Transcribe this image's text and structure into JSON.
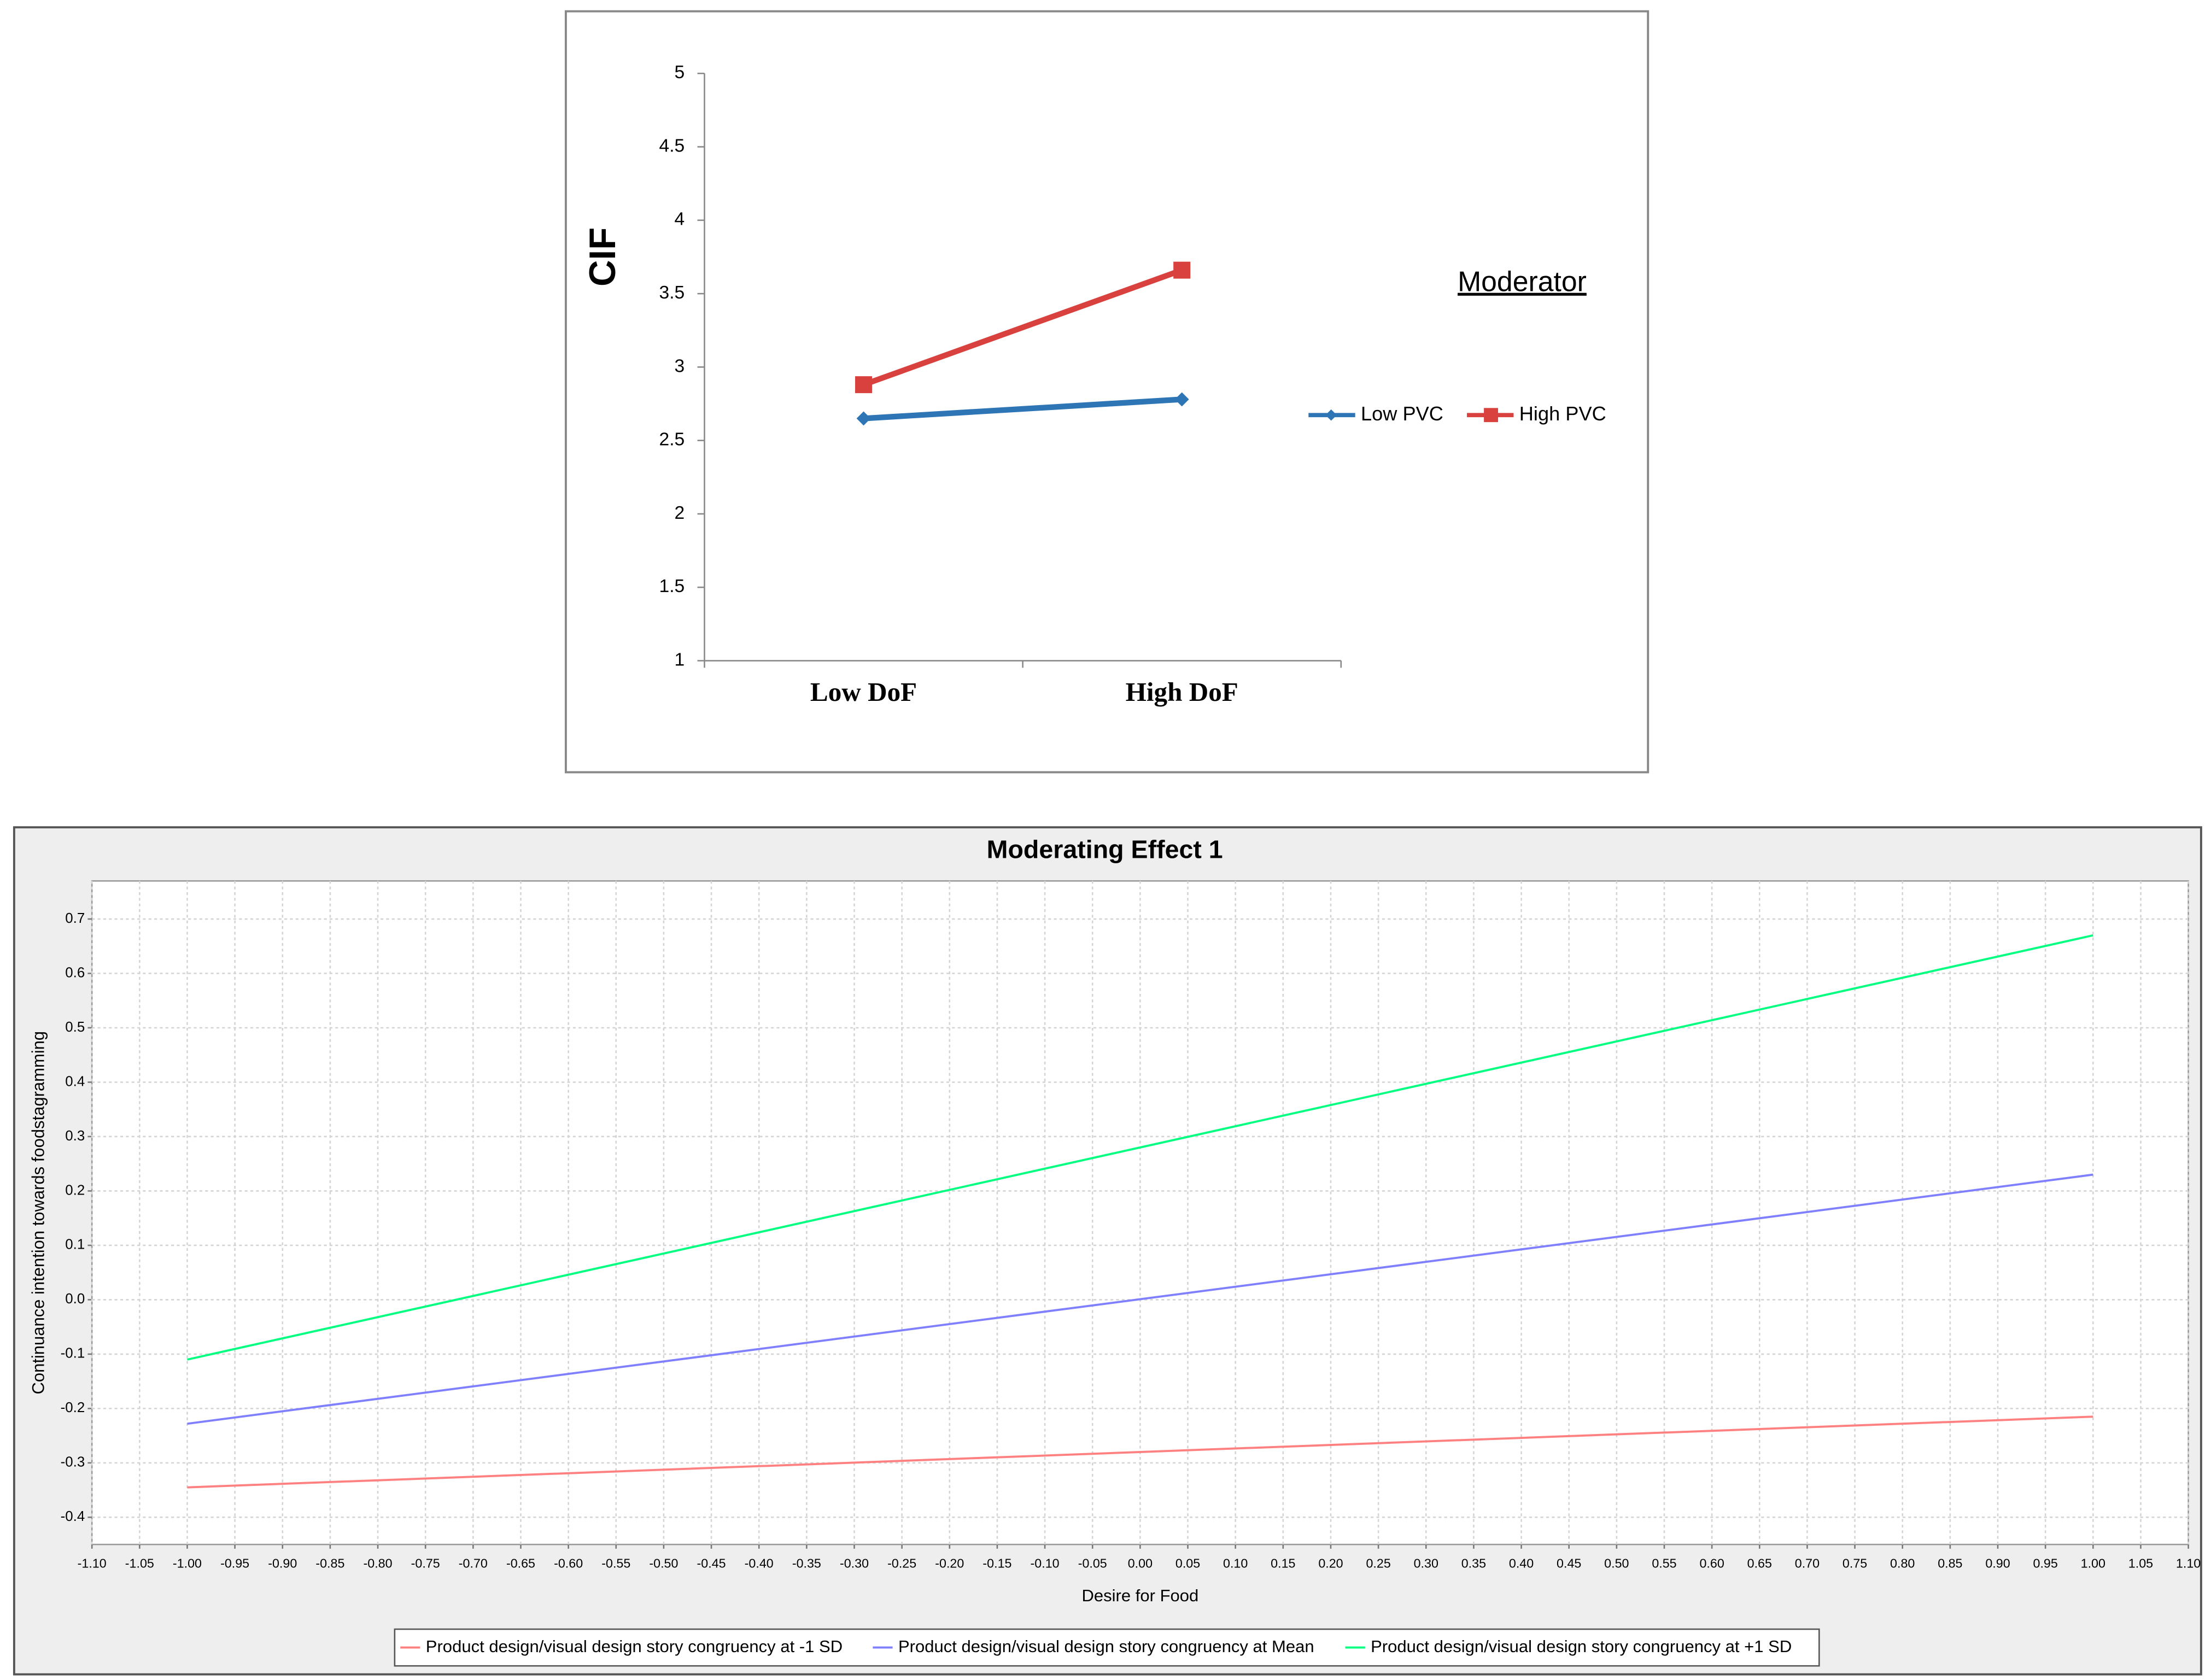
{
  "chart_data": [
    {
      "type": "line",
      "y_label": "CIF",
      "legend_title": "Moderator",
      "categories": [
        "Low DoF",
        "High DoF"
      ],
      "series": [
        {
          "name": "Low PVC",
          "color": "#2e75b6",
          "marker": "diamond",
          "values": [
            2.65,
            2.78
          ]
        },
        {
          "name": "High PVC",
          "color": "#d9413e",
          "marker": "square",
          "values": [
            2.88,
            3.66
          ]
        }
      ],
      "ylim": [
        1,
        5
      ],
      "yticks": [
        1,
        1.5,
        2,
        2.5,
        3,
        3.5,
        4,
        4.5,
        5
      ],
      "grid": false
    },
    {
      "type": "line",
      "title": "Moderating Effect 1",
      "x_label": "Desire for Food",
      "y_label": "Continuance intention towards foodstagramming",
      "x": [
        -1,
        1
      ],
      "series": [
        {
          "name": "Product design/visual design story congruency at -1 SD",
          "color": "#ff8080",
          "values": [
            -0.345,
            -0.215
          ]
        },
        {
          "name": "Product design/visual design story congruency at Mean",
          "color": "#8080ff",
          "values": [
            -0.228,
            0.23
          ]
        },
        {
          "name": "Product design/visual design story congruency at +1 SD",
          "color": "#00ff80",
          "values": [
            -0.11,
            0.67
          ]
        }
      ],
      "xlim": [
        -1.1,
        1.1
      ],
      "xticks": [
        {
          "value": -1.1,
          "label": "-1.10"
        },
        -1.05,
        {
          "value": -1,
          "label": "-1.00"
        },
        -0.95,
        {
          "value": -0.9,
          "label": "-0.90"
        },
        -0.85,
        {
          "value": -0.8,
          "label": "-0.80"
        },
        -0.75,
        {
          "value": -0.7,
          "label": "-0.70"
        },
        -0.65,
        {
          "value": -0.6,
          "label": "-0.60"
        },
        -0.55,
        {
          "value": -0.5,
          "label": "-0.50"
        },
        -0.45,
        {
          "value": -0.4,
          "label": "-0.40"
        },
        -0.35,
        {
          "value": -0.3,
          "label": "-0.30"
        },
        -0.25,
        {
          "value": -0.2,
          "label": "-0.20"
        },
        -0.15,
        {
          "value": -0.1,
          "label": "-0.10"
        },
        -0.05,
        {
          "value": 0,
          "label": "0.00"
        },
        0.05,
        {
          "value": 0.1,
          "label": "0.10"
        },
        0.15,
        {
          "value": 0.2,
          "label": "0.20"
        },
        0.25,
        {
          "value": 0.3,
          "label": "0.30"
        },
        0.35,
        {
          "value": 0.4,
          "label": "0.40"
        },
        0.45,
        {
          "value": 0.5,
          "label": "0.50"
        },
        0.55,
        {
          "value": 0.6,
          "label": "0.60"
        },
        0.65,
        {
          "value": 0.7,
          "label": "0.70"
        },
        0.75,
        {
          "value": 0.8,
          "label": "0.80"
        },
        0.85,
        {
          "value": 0.9,
          "label": "0.90"
        },
        0.95,
        {
          "value": 1,
          "label": "1.00"
        },
        1.05,
        {
          "value": 1.1,
          "label": "1.10"
        }
      ],
      "ylim": [
        -0.45,
        0.77
      ],
      "yticks": [
        -0.4,
        -0.3,
        -0.2,
        -0.1,
        {
          "value": 0,
          "label": "0.0"
        },
        0.1,
        0.2,
        0.3,
        0.4,
        0.5,
        0.6,
        0.7
      ],
      "grid": true
    }
  ]
}
